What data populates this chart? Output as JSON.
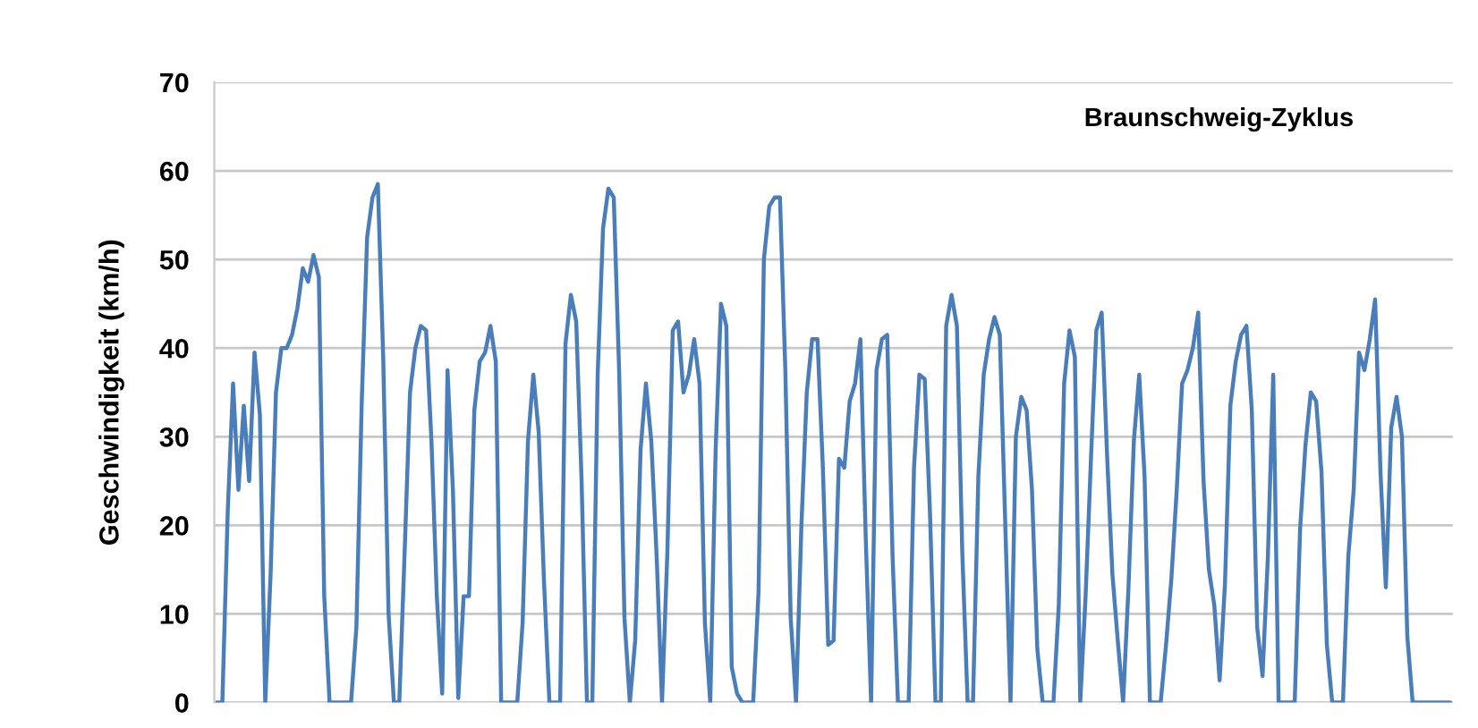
{
  "chart_data": {
    "type": "line",
    "title": "Braunschweig-Zyklus",
    "ylabel": "Geschwindigkeit (km/h)",
    "categories": [
      null,
      null,
      null,
      null,
      null,
      null,
      null,
      null,
      null,
      null,
      null,
      null,
      null,
      null,
      null,
      null,
      null,
      null,
      null,
      null,
      null,
      null,
      null,
      null,
      null,
      null,
      null,
      null,
      null,
      null,
      null,
      null,
      null,
      null,
      null,
      null,
      null,
      null,
      null,
      null,
      null,
      null,
      null,
      null,
      null,
      null,
      null,
      null,
      null,
      null,
      null,
      null,
      null,
      null,
      null,
      null,
      null,
      null,
      null,
      null,
      null,
      null,
      null,
      null,
      null,
      null,
      null,
      null,
      null,
      null,
      null,
      null,
      null,
      null,
      null,
      null,
      null,
      null,
      null,
      null,
      null,
      null,
      null,
      null,
      null,
      null,
      null,
      null,
      null,
      null,
      null,
      null,
      null,
      null,
      null,
      null,
      null,
      null,
      null,
      null,
      null,
      null,
      null,
      null,
      null,
      null,
      null,
      null,
      null,
      null,
      null,
      null,
      null,
      null,
      null,
      null,
      null,
      null,
      null,
      null,
      null,
      null,
      null,
      null,
      null,
      null,
      null,
      null,
      null,
      null,
      null,
      null,
      null,
      null,
      null,
      null,
      null,
      null,
      null,
      null,
      null,
      null,
      null,
      null,
      null,
      null,
      null,
      null,
      null,
      null,
      null,
      null,
      null,
      null,
      null,
      null,
      null,
      null,
      null,
      null,
      null,
      null,
      null,
      null,
      null,
      null,
      null,
      null,
      null,
      null,
      null,
      null,
      null,
      null,
      null,
      null,
      null,
      null,
      null,
      null,
      null,
      null,
      null,
      null,
      null,
      null,
      null,
      null,
      null,
      null,
      null,
      null,
      null,
      null,
      null,
      null,
      null,
      null,
      null,
      null,
      null,
      null,
      null,
      null,
      null,
      null,
      null,
      null,
      null,
      null,
      null,
      null,
      null,
      null,
      null,
      null,
      null,
      null,
      null,
      null,
      null,
      null,
      null,
      null,
      null,
      null,
      null,
      null,
      null,
      null,
      null
    ],
    "series": [
      {
        "color": "#4a7ebb",
        "values": [
          0,
          0,
          21.5,
          36,
          24,
          33.5,
          25,
          39.5,
          32.5,
          0,
          14.5,
          35,
          40,
          40,
          41.5,
          44.5,
          49,
          47.5,
          50.5,
          48,
          12,
          0,
          0,
          0,
          0,
          0,
          8.5,
          34,
          52.5,
          57,
          58.5,
          39,
          10,
          0,
          0,
          17,
          35,
          40,
          42.5,
          42,
          29.5,
          12,
          1,
          37.5,
          24,
          0.5,
          12,
          12,
          33,
          38.5,
          39.5,
          42.5,
          38.5,
          0,
          0,
          0,
          0,
          9,
          29.5,
          37,
          30.5,
          13.5,
          0,
          0,
          0,
          40.5,
          46,
          43,
          25,
          0,
          0,
          37,
          53.5,
          58,
          57,
          37.5,
          9.5,
          0,
          7,
          28.5,
          36,
          29.5,
          16.5,
          0,
          17,
          42,
          43,
          35,
          37,
          41,
          36,
          9,
          0,
          28.5,
          45,
          42.5,
          4,
          1,
          0,
          0,
          0,
          12.5,
          50,
          56,
          57,
          57,
          37.5,
          9.5,
          0,
          20,
          35,
          41,
          41,
          26.5,
          6.5,
          7,
          27.5,
          26.5,
          34,
          36,
          41,
          18.5,
          0,
          37.5,
          41,
          41.5,
          16.5,
          0,
          0,
          0,
          26.5,
          37,
          36.5,
          21,
          0,
          0,
          42.5,
          46,
          42.5,
          17,
          0,
          0,
          25.5,
          37,
          41,
          43.5,
          41.5,
          20.5,
          0,
          30,
          34.5,
          33,
          24,
          6,
          0,
          0,
          0,
          11,
          36,
          42,
          39,
          0,
          12,
          27.5,
          42,
          44,
          28,
          14.5,
          7,
          0,
          13,
          29.5,
          37,
          25.5,
          0,
          0,
          0,
          6.5,
          14,
          24,
          36,
          37.5,
          40,
          44,
          25,
          15,
          11,
          2.5,
          13.5,
          33.5,
          38.5,
          41.5,
          42.5,
          33,
          8.5,
          3,
          16.5,
          37,
          0,
          0,
          0,
          0,
          19.5,
          29,
          35,
          34,
          26,
          6.5,
          0,
          0,
          0,
          16.5,
          24,
          39.5,
          37.5,
          41,
          45.5,
          26,
          13,
          31,
          34.5,
          30,
          7.5,
          0,
          0,
          0,
          0,
          0,
          0,
          0,
          0
        ]
      }
    ],
    "ylim": [
      0,
      70
    ],
    "yticks": [
      0,
      10,
      20,
      30,
      40,
      50,
      60,
      70
    ],
    "grid": "y",
    "tick_labels": "y"
  }
}
